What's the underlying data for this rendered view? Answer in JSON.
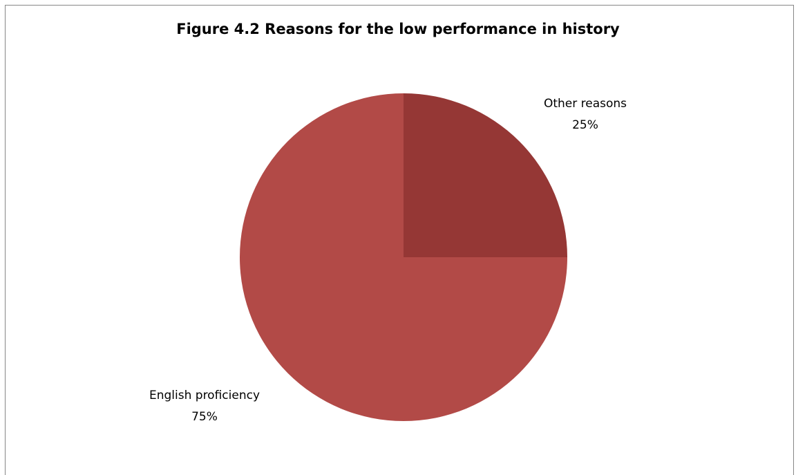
{
  "chart_data": {
    "type": "pie",
    "title": "Figure 4.2 Reasons for the low performance in history",
    "slices": [
      {
        "name": "Other reasons",
        "value": 25,
        "label": "25%",
        "color": "#953735"
      },
      {
        "name": "English proficiency",
        "value": 75,
        "label": "75%",
        "color": "#b24a47"
      }
    ],
    "start_angle_deg": 0,
    "direction": "clockwise",
    "legend": "none"
  }
}
